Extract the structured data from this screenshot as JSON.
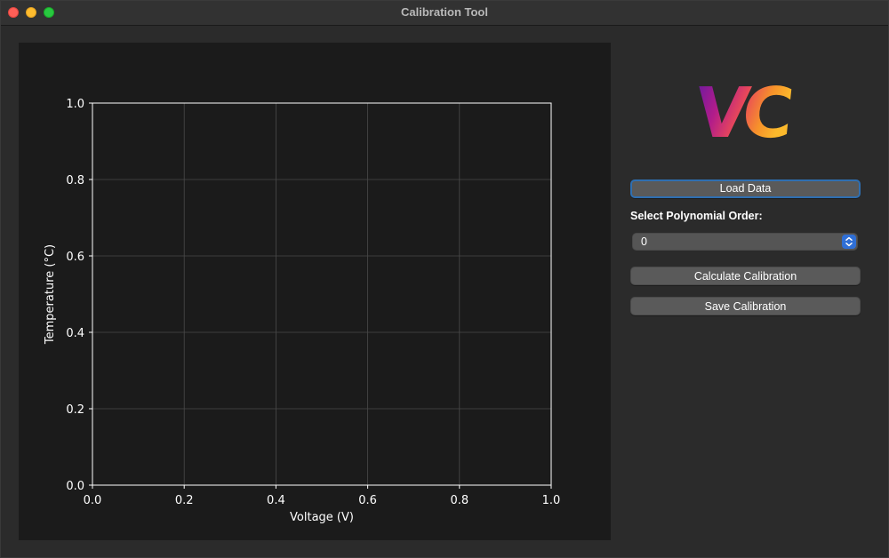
{
  "window": {
    "title": "Calibration Tool"
  },
  "plot": {
    "xlabel": "Voltage (V)",
    "ylabel": "Temperature (°C)",
    "xticks": [
      "0.0",
      "0.2",
      "0.4",
      "0.6",
      "0.8",
      "1.0"
    ],
    "yticks": [
      "0.0",
      "0.2",
      "0.4",
      "0.6",
      "0.8",
      "1.0"
    ]
  },
  "chart_data": {
    "type": "scatter",
    "series": [],
    "xlabel": "Voltage (V)",
    "ylabel": "Temperature (°C)",
    "xlim": [
      0.0,
      1.0
    ],
    "ylim": [
      0.0,
      1.0
    ],
    "xticks": [
      0.0,
      0.2,
      0.4,
      0.6,
      0.8,
      1.0
    ],
    "yticks": [
      0.0,
      0.2,
      0.4,
      0.6,
      0.8,
      1.0
    ],
    "grid": true
  },
  "logo": {
    "text": "VC"
  },
  "controls": {
    "load_label": "Load Data",
    "order_label": "Select Polynomial Order:",
    "order_value": "0",
    "calculate_label": "Calculate Calibration",
    "save_label": "Save Calibration"
  },
  "colors": {
    "focus_ring": "#2f6fb1",
    "select_chevron": "#2f6fd6"
  }
}
